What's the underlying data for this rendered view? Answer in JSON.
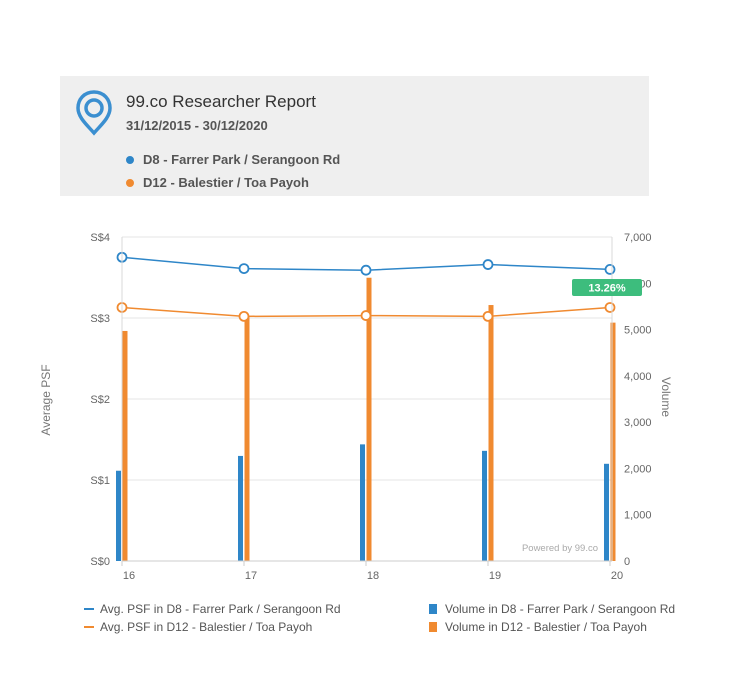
{
  "header": {
    "title": "99.co Researcher Report",
    "date_range": "31/12/2015 - 30/12/2020",
    "legend": [
      {
        "label": "D8 - Farrer Park / Serangoon Rd",
        "color": "#2e86c8"
      },
      {
        "label": "D12 - Balestier / Toa Payoh",
        "color": "#f08a30"
      }
    ],
    "logo_icon": "location-pin-icon"
  },
  "colors": {
    "d8": "#2e86c8",
    "d12": "#f08a30",
    "badge": "#3dbd7d",
    "grid": "#e6e6e6"
  },
  "chart_data": {
    "type": "bar",
    "categories": [
      "16",
      "17",
      "18",
      "19",
      "20"
    ],
    "y_left": {
      "label": "Average PSF",
      "ticks": [
        "S$0",
        "S$1",
        "S$2",
        "S$3",
        "S$4"
      ],
      "range": [
        0,
        4
      ]
    },
    "y_right": {
      "label": "Volume",
      "ticks": [
        "0",
        "1,000",
        "2,000",
        "3,000",
        "4,000",
        "5,000",
        "6,000",
        "7,000"
      ],
      "range": [
        0,
        7000
      ]
    },
    "series": [
      {
        "name": "Avg. PSF in D8 - Farrer Park / Serangoon Rd",
        "kind": "line",
        "axis": "left",
        "color": "#2e86c8",
        "values": [
          3.75,
          3.61,
          3.59,
          3.66,
          3.6
        ]
      },
      {
        "name": "Avg. PSF in D12 - Balestier / Toa Payoh",
        "kind": "line",
        "axis": "left",
        "color": "#f08a30",
        "values": [
          3.13,
          3.02,
          3.03,
          3.02,
          3.13
        ]
      },
      {
        "name": "Volume in D8 - Farrer Park / Serangoon Rd",
        "kind": "bar",
        "axis": "right",
        "color": "#2e86c8",
        "values": [
          1950,
          2270,
          2520,
          2380,
          2100
        ]
      },
      {
        "name": "Volume in D12 - Balestier / Toa Payoh",
        "kind": "bar",
        "axis": "right",
        "color": "#f08a30",
        "values": [
          4970,
          5270,
          6120,
          5530,
          5150
        ]
      }
    ],
    "badge": "13.26%",
    "watermark": "Powered by 99.co",
    "grid": true,
    "legend_position": "bottom"
  }
}
